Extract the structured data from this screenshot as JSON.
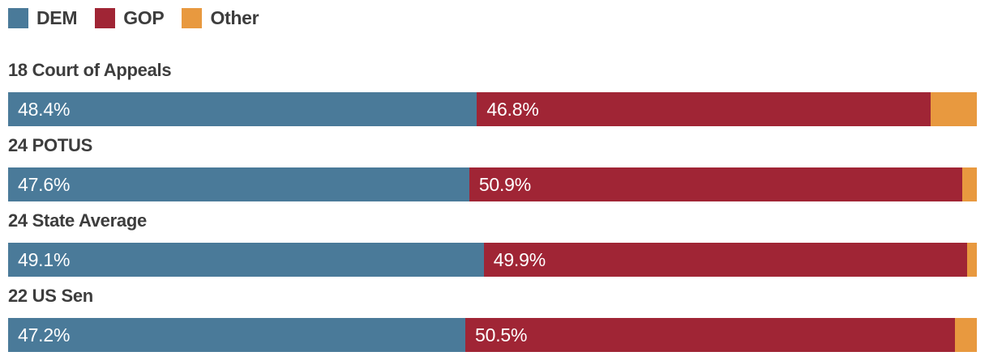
{
  "page": {
    "background": "#ffffff",
    "text_color": "#3d3d3d"
  },
  "legend": {
    "items": [
      {
        "label": "DEM",
        "color": "#4a7a99"
      },
      {
        "label": "GOP",
        "color": "#a02535"
      },
      {
        "label": "Other",
        "color": "#e8993f"
      }
    ]
  },
  "chart_data": {
    "type": "bar",
    "orientation": "horizontal",
    "stacked": true,
    "unit": "percent",
    "xlim": [
      0,
      100
    ],
    "grid": false,
    "legend_position": "top-left",
    "categories": [
      "18 Court of Appeals",
      "24 POTUS",
      "24 State Average",
      "22 US Sen"
    ],
    "series": [
      {
        "name": "DEM",
        "color": "#4a7a99",
        "values": [
          48.4,
          47.6,
          49.1,
          47.2
        ]
      },
      {
        "name": "GOP",
        "color": "#a02535",
        "values": [
          46.8,
          50.9,
          49.9,
          50.5
        ]
      },
      {
        "name": "Other",
        "color": "#e8993f",
        "values": [
          4.8,
          1.5,
          1.0,
          2.3
        ]
      }
    ],
    "value_label_format": "{value}%",
    "value_labels_shown_for": [
      "DEM",
      "GOP"
    ]
  },
  "display": {
    "rows": [
      {
        "dem_label": "48.4%",
        "gop_label": "46.8%"
      },
      {
        "dem_label": "47.6%",
        "gop_label": "50.9%"
      },
      {
        "dem_label": "49.1%",
        "gop_label": "49.9%"
      },
      {
        "dem_label": "47.2%",
        "gop_label": "50.5%"
      }
    ]
  }
}
